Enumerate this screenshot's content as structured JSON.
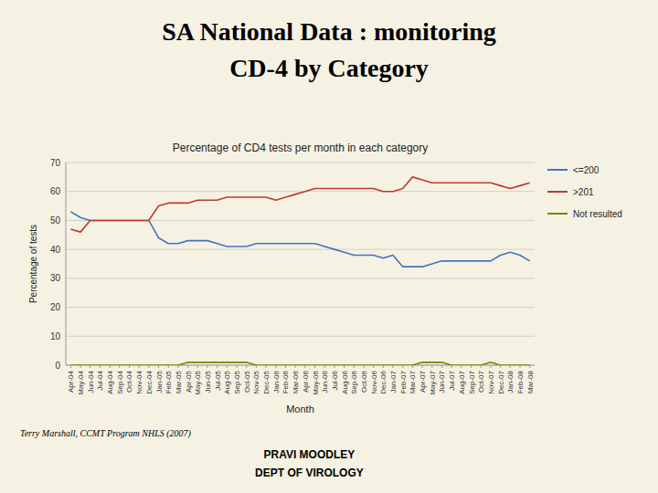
{
  "title_lines": [
    "SA National Data : monitoring",
    "CD-4 by Category"
  ],
  "footer_left": "Terry Marshall, CCMT Program NHLS (2007)",
  "footer_lines": [
    "PRAVI MOODLEY",
    "DEPT OF VIROLOGY"
  ],
  "chart_data": {
    "type": "line",
    "title": "Percentage of CD4 tests per month in each category",
    "x_label": "Month",
    "y_label": "Percentage of tests",
    "categories": [
      "Apr-04",
      "May-04",
      "Jun-04",
      "Jul-04",
      "Aug-04",
      "Sep-04",
      "Oct-04",
      "Nov-04",
      "Dec-04",
      "Jan-05",
      "Feb-05",
      "Mar-05",
      "Apr-05",
      "May-05",
      "Jun-05",
      "Jul-05",
      "Aug-05",
      "Sep-05",
      "Oct-05",
      "Nov-05",
      "Dec-05",
      "Jan-06",
      "Feb-06",
      "Mar-06",
      "Apr-06",
      "May-06",
      "Jun-06",
      "Jul-06",
      "Aug-06",
      "Sep-06",
      "Oct-06",
      "Nov-06",
      "Dec-06",
      "Jan-07",
      "Feb-07",
      "Mar-07",
      "Apr-07",
      "May-07",
      "Jun-07",
      "Jul-07",
      "Aug-07",
      "Sep-07",
      "Oct-07",
      "Nov-07",
      "Dec-07",
      "Jan-08",
      "Feb-08",
      "Mar-08"
    ],
    "series": [
      {
        "name": "<=200",
        "color": "#4472c4",
        "values": [
          53,
          51,
          50,
          50,
          50,
          50,
          50,
          50,
          50,
          44,
          42,
          42,
          43,
          43,
          43,
          42,
          41,
          41,
          41,
          42,
          42,
          42,
          42,
          42,
          42,
          42,
          41,
          40,
          39,
          38,
          38,
          38,
          37,
          38,
          34,
          34,
          34,
          35,
          36,
          36,
          36,
          36,
          36,
          36,
          38,
          39,
          38,
          36
        ]
      },
      {
        "name": ">201",
        "color": "#c0392b",
        "values": [
          47,
          46,
          50,
          50,
          50,
          50,
          50,
          50,
          50,
          55,
          56,
          56,
          56,
          57,
          57,
          57,
          58,
          58,
          58,
          58,
          58,
          57,
          58,
          59,
          60,
          61,
          61,
          61,
          61,
          61,
          61,
          61,
          60,
          60,
          61,
          65,
          64,
          63,
          63,
          63,
          63,
          63,
          63,
          63,
          62,
          61,
          62,
          63
        ]
      },
      {
        "name": "Not resulted",
        "color": "#808000",
        "values": [
          0,
          0,
          0,
          0,
          0,
          0,
          0,
          0,
          0,
          0,
          0,
          0,
          1,
          1,
          1,
          1,
          1,
          1,
          1,
          0,
          0,
          0,
          0,
          0,
          0,
          0,
          0,
          0,
          0,
          0,
          0,
          0,
          0,
          0,
          0,
          0,
          1,
          1,
          1,
          0,
          0,
          0,
          0,
          1,
          0,
          0,
          0,
          0
        ]
      }
    ],
    "ylim": [
      0,
      70
    ],
    "yticks": [
      0,
      10,
      20,
      30,
      40,
      50,
      60,
      70
    ],
    "grid": true,
    "legend": "right"
  }
}
